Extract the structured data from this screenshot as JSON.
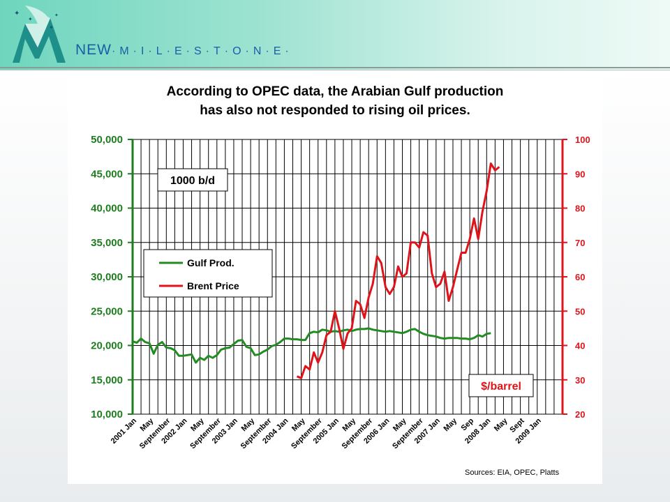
{
  "brand": {
    "name_prefix": "NEW",
    "name_rest": "·M·I·L·E·S·T·O·N·E·"
  },
  "colors": {
    "gulf": "#228b22",
    "brent": "#e0131a",
    "left_axis": "#1e7d1e",
    "right_axis": "#e0131a"
  },
  "sources": "Sources: EIA, OPEC, Platts",
  "chart_data": {
    "type": "line",
    "title": "According to OPEC data, the Arabian Gulf production has also not responded to rising oil prices.",
    "title_lines": [
      "According to OPEC data, the Arabian Gulf production",
      "has also not responded to rising oil prices."
    ],
    "x": {
      "months": 103,
      "start": "2001 Jan",
      "end": "2009 Jul"
    },
    "tick_labels": [
      "2001 Jan",
      "May",
      "September",
      "2002 Jan",
      "May",
      "September",
      "2003 Jan",
      "May",
      "September",
      "2004 Jan",
      "May",
      "September",
      "2005 Jan",
      "May",
      "September",
      "2006 Jan",
      "May",
      "September",
      "2007 Jan",
      "May",
      "Sep",
      "2008 Jan",
      "May",
      "Sept",
      "2009 Jan"
    ],
    "left_axis": {
      "label": "1000 b/d",
      "ylim": [
        10000,
        50000
      ],
      "ticks": [
        "10,000",
        "15,000",
        "20,000",
        "25,000",
        "30,000",
        "35,000",
        "40,000",
        "45,000",
        "50,000"
      ]
    },
    "right_axis": {
      "label": "$/barrel",
      "ylim": [
        20,
        100
      ],
      "ticks": [
        "20",
        "30",
        "40",
        "50",
        "60",
        "70",
        "80",
        "90",
        "100"
      ]
    },
    "grid": true,
    "legend_position": "middle-left",
    "series": [
      {
        "name": "Gulf Prod.",
        "axis": "left",
        "start_month": 0,
        "values": [
          20600,
          20400,
          21000,
          20500,
          20300,
          18800,
          20100,
          20500,
          19700,
          19600,
          19300,
          18500,
          18500,
          18600,
          18700,
          17500,
          18200,
          17900,
          18500,
          18200,
          18600,
          19400,
          19600,
          19700,
          20200,
          20700,
          20800,
          19800,
          19600,
          18600,
          18700,
          19100,
          19400,
          19900,
          20100,
          20500,
          21000,
          21000,
          20900,
          20900,
          20800,
          20800,
          21800,
          22000,
          21900,
          22300,
          22200,
          22000,
          22100,
          22000,
          22200,
          22300,
          22100,
          22300,
          22400,
          22400,
          22500,
          22300,
          22200,
          22100,
          22000,
          22100,
          22000,
          21900,
          21800,
          22000,
          22300,
          22400,
          22000,
          21700,
          21500,
          21400,
          21300,
          21100,
          21000,
          21100,
          21100,
          21100,
          21000,
          21000,
          20900,
          21100,
          21500,
          21300,
          21700,
          21800
        ]
      },
      {
        "name": "Brent Price",
        "axis": "right",
        "start_month": 39,
        "values": [
          31,
          30.5,
          34,
          33,
          38,
          35,
          38,
          43,
          44,
          50,
          45,
          39,
          43.5,
          45,
          53,
          52,
          48,
          54,
          58,
          66,
          64,
          57,
          55,
          57,
          63,
          60,
          61,
          70,
          70,
          68.5,
          73,
          72,
          61,
          57,
          58,
          61.5,
          53,
          57,
          62,
          67,
          67,
          71,
          77,
          71,
          79,
          85,
          93,
          91,
          92
        ]
      }
    ]
  }
}
